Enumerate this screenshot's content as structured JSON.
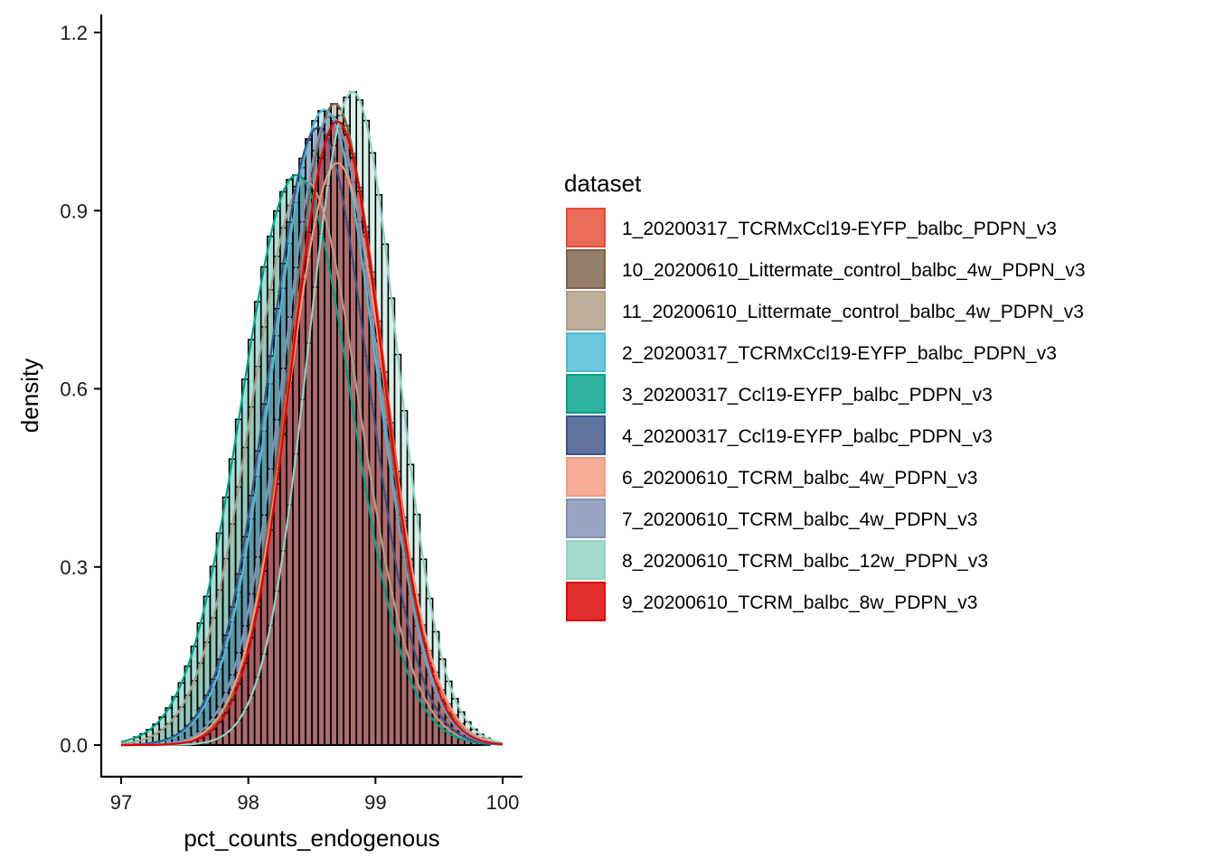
{
  "chart_data": {
    "type": "histogram-density",
    "title": "",
    "xlabel": "pct_counts_endogenous",
    "ylabel": "density",
    "xlim": [
      97,
      100
    ],
    "ylim": [
      0,
      1.2
    ],
    "x_ticks": [
      97,
      98,
      99,
      100
    ],
    "y_ticks": [
      0.0,
      0.3,
      0.6,
      0.9,
      1.2
    ],
    "x_tick_labels": [
      "97",
      "98",
      "99",
      "100"
    ],
    "y_tick_labels": [
      "0.0",
      "0.3",
      "0.6",
      "0.9",
      "1.2"
    ],
    "grid": false,
    "legend": {
      "title": "dataset",
      "position": "right"
    },
    "series": [
      {
        "name": "1_20200317_TCRMxCcl19-EYFP_balbc_PDPN_v3",
        "color": "#E64B35",
        "mean": 98.7,
        "sd": 0.37,
        "peak": 1.05
      },
      {
        "name": "10_20200610_Littermate_control_balbc_4w_PDPN_v3",
        "color": "#7E6148",
        "mean": 98.68,
        "sd": 0.36,
        "peak": 1.08
      },
      {
        "name": "11_20200610_Littermate_control_balbc_4w_PDPN_v3",
        "color": "#B09C85",
        "mean": 98.45,
        "sd": 0.42,
        "peak": 0.95
      },
      {
        "name": "2_20200317_TCRMxCcl19-EYFP_balbc_PDPN_v3",
        "color": "#4DBBD5",
        "mean": 98.6,
        "sd": 0.4,
        "peak": 1.07
      },
      {
        "name": "3_20200317_Ccl19-EYFP_balbc_PDPN_v3",
        "color": "#00A087",
        "mean": 98.38,
        "sd": 0.43,
        "peak": 0.96
      },
      {
        "name": "4_20200317_Ccl19-EYFP_balbc_PDPN_v3",
        "color": "#3C5488",
        "mean": 98.55,
        "sd": 0.39,
        "peak": 1.04
      },
      {
        "name": "6_20200610_TCRM_balbc_4w_PDPN_v3",
        "color": "#F39B7F",
        "mean": 98.7,
        "sd": 0.38,
        "peak": 0.98
      },
      {
        "name": "7_20200610_TCRM_balbc_4w_PDPN_v3",
        "color": "#8491B4",
        "mean": 98.65,
        "sd": 0.37,
        "peak": 1.06
      },
      {
        "name": "8_20200610_TCRM_balbc_12w_PDPN_v3",
        "color": "#91D1C2",
        "mean": 98.82,
        "sd": 0.35,
        "peak": 1.1
      },
      {
        "name": "9_20200610_TCRM_balbc_8w_PDPN_v3",
        "color": "#DC0000",
        "mean": 98.7,
        "sd": 0.36,
        "peak": 1.05
      }
    ]
  }
}
